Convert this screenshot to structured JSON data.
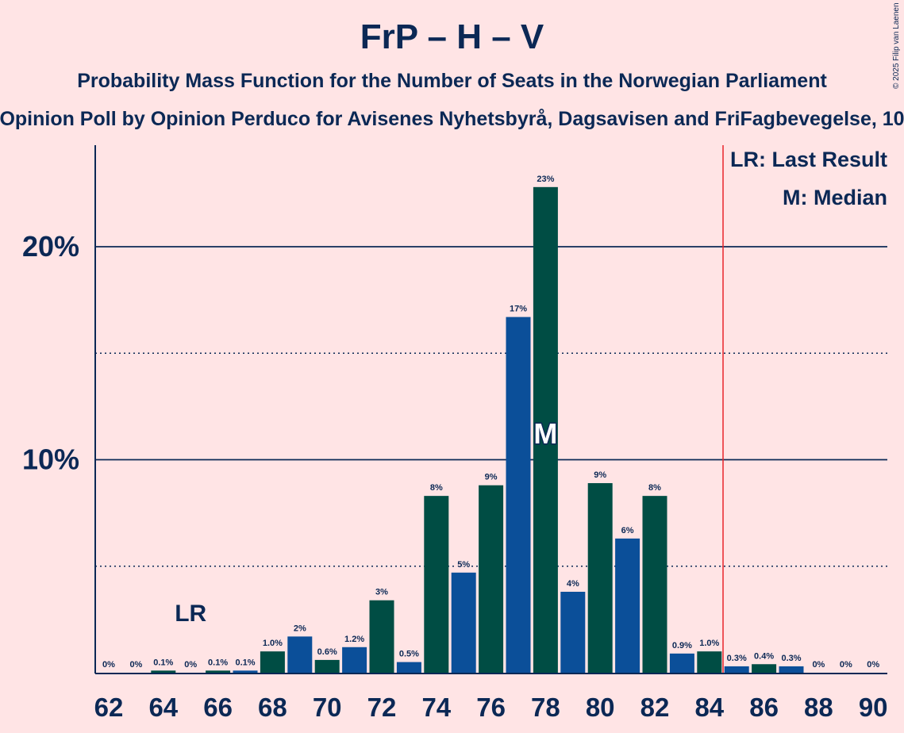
{
  "title": "FrP – H – V",
  "subtitle": "Probability Mass Function for the Number of Seats in the Norwegian Parliament",
  "subsubtitle": "Opinion Poll by Opinion Perduco for Avisenes Nyhetsbyrå, Dagsavisen and FriFagbevegelse, 10",
  "copyright": "© 2025 Filip van Laenen",
  "chart_data": {
    "type": "bar",
    "x": [
      62,
      63,
      64,
      65,
      66,
      67,
      68,
      69,
      70,
      71,
      72,
      73,
      74,
      75,
      76,
      77,
      78,
      79,
      80,
      81,
      82,
      83,
      84,
      85,
      86,
      87,
      88,
      89,
      90
    ],
    "values": [
      0,
      0,
      0.1,
      0,
      0.1,
      0.1,
      1.0,
      1.7,
      0.6,
      1.2,
      3.4,
      0.5,
      8.3,
      4.7,
      8.8,
      16.7,
      22.8,
      3.8,
      8.9,
      6.3,
      8.3,
      0.9,
      1.0,
      0.3,
      0.4,
      0.3,
      0,
      0,
      0
    ],
    "labels": [
      "0%",
      "0%",
      "0.1%",
      "0%",
      "0.1%",
      "0.1%",
      "1.0%",
      "2%",
      "0.6%",
      "1.2%",
      "3%",
      "0.5%",
      "8%",
      "5%",
      "9%",
      "17%",
      "23%",
      "4%",
      "9%",
      "6%",
      "8%",
      "0.9%",
      "1.0%",
      "0.3%",
      "0.4%",
      "0.3%",
      "0%",
      "0%",
      "0%"
    ],
    "x_tick_labels": [
      "62",
      "64",
      "66",
      "68",
      "70",
      "72",
      "74",
      "76",
      "78",
      "80",
      "82",
      "84",
      "86",
      "88",
      "90"
    ],
    "y_tick_labels": [
      "10%",
      "20%"
    ],
    "ylim": [
      0,
      25
    ],
    "last_result": {
      "seats": 65,
      "label": "LR"
    },
    "median": {
      "seats": 78,
      "label": "M"
    },
    "majority_line": 84.5,
    "legend": [
      "LR: Last Result",
      "M: Median"
    ],
    "legend_position": "top-right",
    "colors": {
      "background": "#FFE4E5",
      "axis": "#0B2855",
      "bar_light": "#0B4F99",
      "bar_dark": "#004D44",
      "majority": "#E8252B"
    }
  }
}
